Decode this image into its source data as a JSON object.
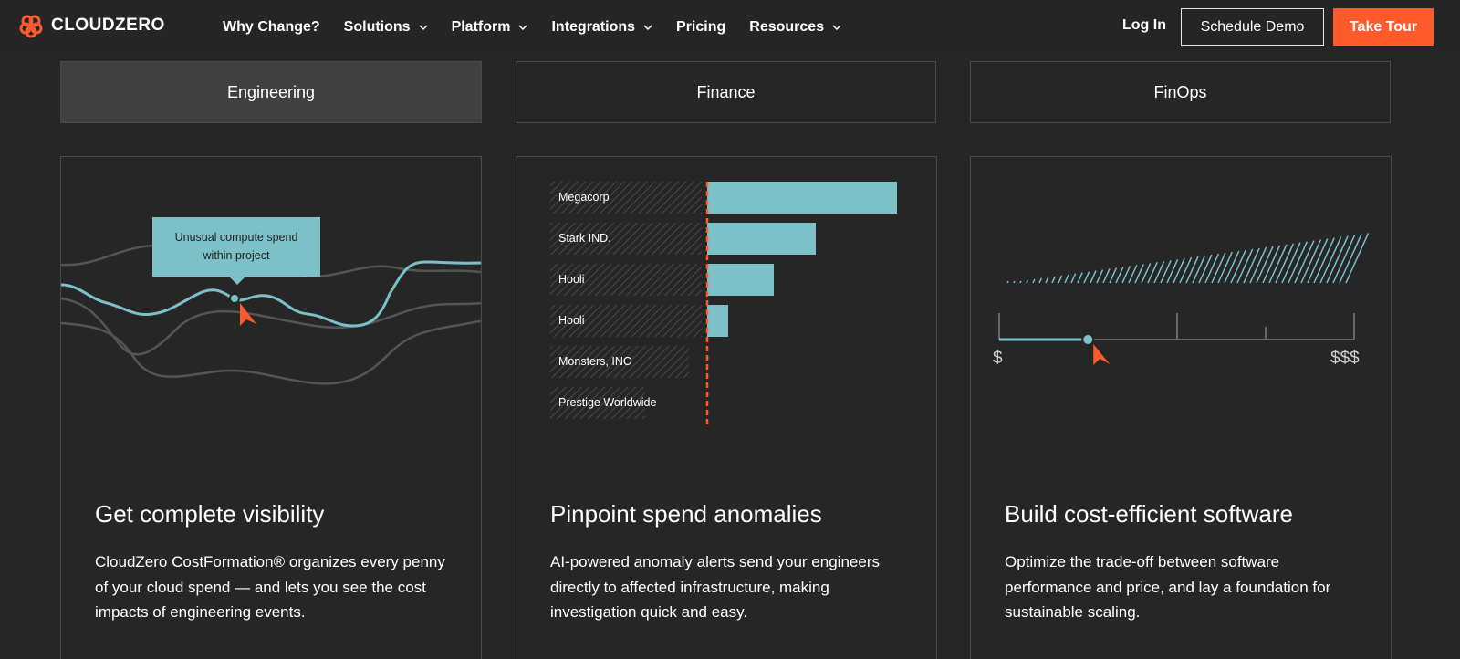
{
  "brand": {
    "name": "CLOUDZERO",
    "accent": "#ff5a2b",
    "teal": "#7cc1c8"
  },
  "nav": {
    "items": [
      {
        "label": "Why Change?",
        "dropdown": false
      },
      {
        "label": "Solutions",
        "dropdown": true
      },
      {
        "label": "Platform",
        "dropdown": true
      },
      {
        "label": "Integrations",
        "dropdown": true
      },
      {
        "label": "Pricing",
        "dropdown": false
      },
      {
        "label": "Resources",
        "dropdown": true
      }
    ],
    "login": "Log In",
    "schedule_demo": "Schedule Demo",
    "take_tour": "Take Tour"
  },
  "tabs": [
    {
      "label": "Engineering",
      "active": true
    },
    {
      "label": "Finance",
      "active": false
    },
    {
      "label": "FinOps",
      "active": false
    }
  ],
  "cards": [
    {
      "title": "Get complete visibility",
      "description": "CloudZero CostFormation® organizes every penny of your cloud spend — and lets you see the cost impacts of engineering events.",
      "tooltip_line1": "Unusual compute spend",
      "tooltip_line2": "within project"
    },
    {
      "title": "Pinpoint spend anomalies",
      "description": "AI-powered anomaly alerts send your engineers directly to affected infrastructure, making investigation quick and easy.",
      "bars": [
        {
          "label": "Megacorp",
          "value": 1.0
        },
        {
          "label": "Stark IND.",
          "value": 0.57
        },
        {
          "label": "Hooli",
          "value": 0.35
        },
        {
          "label": "Hooli",
          "value": 0.11
        },
        {
          "label": "Monsters, INC",
          "value": 0
        },
        {
          "label": "Prestige Worldwide",
          "value": 0
        }
      ]
    },
    {
      "title": "Build cost-efficient software",
      "description": "Optimize the trade-off between software performance and price, and lay a foundation for sustainable scaling.",
      "scale_low": "$",
      "scale_high": "$$$",
      "slider_level": 0.25
    }
  ]
}
